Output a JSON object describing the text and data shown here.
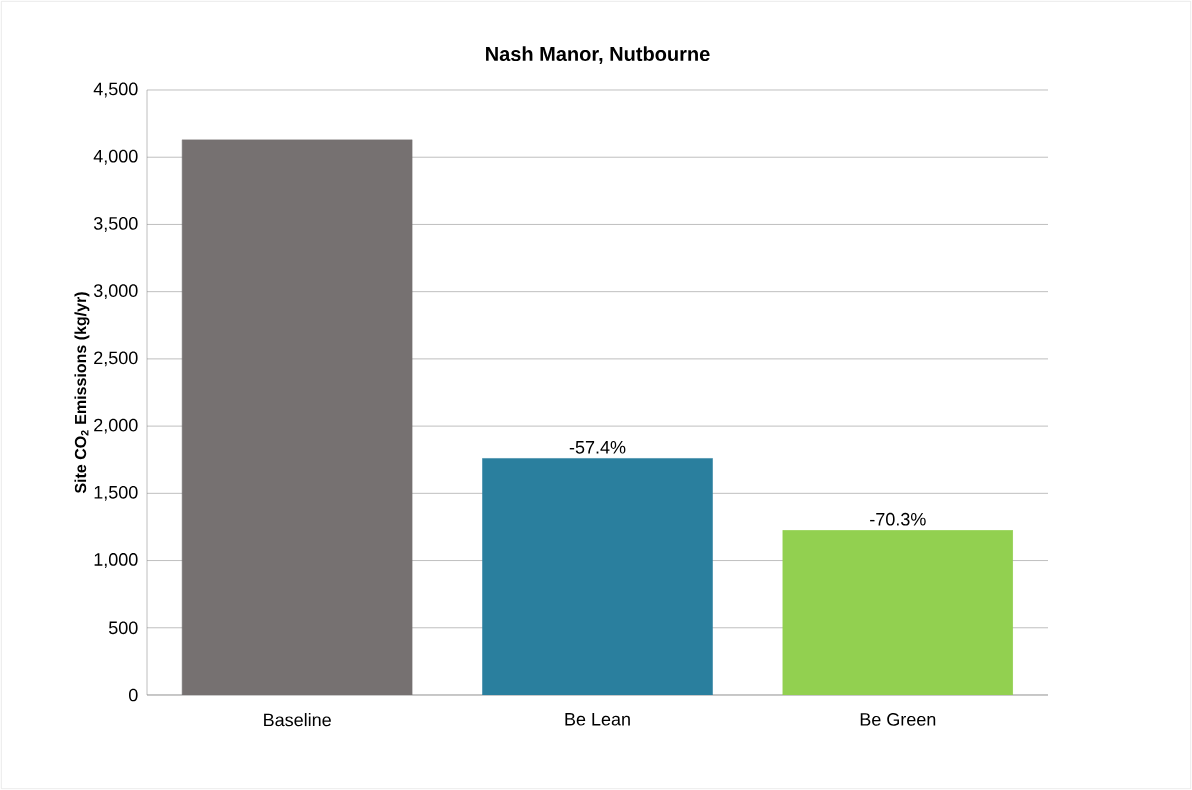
{
  "chart_data": {
    "type": "bar",
    "title": "Nash Manor, Nutbourne",
    "ylabel": "Site CO$_{2}$ Emissions (kg/yr)",
    "categories": [
      "Baseline",
      "Be Lean",
      "Be Green"
    ],
    "values": [
      4130,
      1760,
      1225
    ],
    "colors": [
      "#767171",
      "#2a7f9e",
      "#92d050"
    ],
    "annotations": [
      {
        "text": "-57.4%",
        "x": "Be Lean",
        "y": 1760
      },
      {
        "text": "-70.3%",
        "x": "Be Green",
        "y": 1225
      }
    ],
    "ylim": [
      0,
      4500
    ],
    "yticks": [
      {
        "value": 0,
        "label": "0"
      },
      {
        "value": 500,
        "label": "500"
      },
      {
        "value": 1000,
        "label": "1,000"
      },
      {
        "value": 1500,
        "label": "1,500"
      },
      {
        "value": 2000,
        "label": "2,000"
      },
      {
        "value": 2500,
        "label": "2,500"
      },
      {
        "value": 3000,
        "label": "3,000"
      },
      {
        "value": 3500,
        "label": "3,500"
      },
      {
        "value": 4000,
        "label": "4,000"
      },
      {
        "value": 4500,
        "label": "4,500"
      }
    ],
    "grid": "y"
  }
}
